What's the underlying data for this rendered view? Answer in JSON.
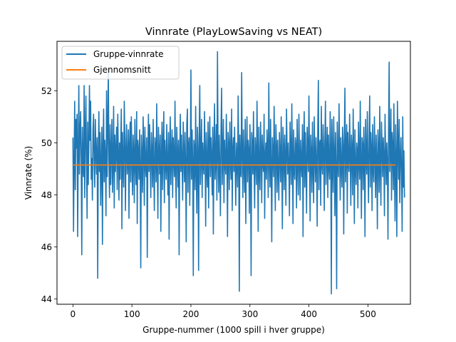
{
  "chart_data": {
    "type": "line",
    "title": "Vinnrate (PlayLowSaving vs NEAT)",
    "xlabel": "Gruppe-nummer (1000 spill i hver gruppe)",
    "ylabel": "Vinnrate (%)",
    "xlim": [
      -27,
      572
    ],
    "ylim": [
      43.8,
      53.9
    ],
    "xticks": [
      0,
      100,
      200,
      300,
      400,
      500
    ],
    "yticks": [
      44,
      46,
      48,
      50,
      52
    ],
    "grid": false,
    "legend_position": "upper-left",
    "series": [
      {
        "name": "Gruppe-vinnrate",
        "color": "#1f77b4",
        "x_start": 0,
        "x_step": 1,
        "values": [
          50.2,
          46.6,
          49.2,
          51.6,
          48.2,
          50.9,
          49.8,
          51.1,
          46.4,
          49.6,
          52.2,
          48.8,
          50.4,
          51.2,
          49.4,
          45.7,
          50.6,
          49.1,
          48.7,
          52.2,
          47.9,
          50.3,
          51.8,
          49.3,
          47.1,
          50.8,
          48.4,
          49.9,
          52.2,
          50.1,
          51.6,
          48.6,
          49.4,
          47.8,
          50.5,
          51.1,
          49.2,
          48.3,
          50.9,
          49.6,
          48.8,
          50.2,
          44.8,
          49.5,
          51.2,
          48.9,
          50.4,
          47.6,
          49.1,
          50.6,
          46.1,
          49.8,
          51.3,
          48.5,
          50.1,
          49.4,
          47.2,
          52.0,
          48.7,
          50.5,
          52.8,
          49.3,
          47.9,
          50.7,
          48.4,
          49.6,
          50.9,
          48.1,
          49.2,
          51.4,
          47.5,
          50.3,
          48.9,
          49.7,
          50.6,
          48.2,
          51.1,
          49.5,
          47.8,
          50.0,
          48.6,
          49.9,
          51.3,
          46.7,
          50.4,
          49.1,
          48.3,
          51.6,
          50.2,
          47.4,
          49.8,
          50.7,
          48.8,
          49.3,
          50.5,
          47.1,
          49.9,
          50.8,
          48.5,
          51.0,
          49.4,
          48.0,
          50.3,
          49.6,
          47.7,
          50.9,
          49.2,
          48.4,
          51.2,
          46.9,
          50.1,
          49.7,
          48.6,
          50.5,
          49.0,
          45.2,
          50.3,
          49.5,
          48.1,
          51.0,
          49.8,
          47.6,
          50.6,
          49.1,
          48.7,
          50.2,
          45.6,
          49.4,
          51.1,
          48.9,
          50.7,
          49.3,
          47.9,
          50.4,
          49.6,
          48.3,
          50.9,
          49.0,
          47.4,
          50.2,
          49.8,
          48.5,
          51.5,
          49.2,
          47.1,
          50.6,
          49.7,
          48.8,
          50.3,
          46.6,
          49.5,
          50.8,
          48.2,
          49.9,
          51.2,
          47.7,
          50.1,
          49.3,
          48.6,
          50.7,
          49.1,
          48.0,
          50.4,
          46.3,
          49.8,
          51.0,
          48.4,
          49.6,
          50.5,
          47.9,
          50.2,
          49.4,
          48.7,
          51.6,
          49.0,
          47.5,
          50.6,
          49.7,
          48.3,
          50.1,
          45.7,
          49.5,
          51.1,
          48.9,
          50.3,
          49.2,
          47.8,
          50.8,
          49.6,
          48.5,
          50.4,
          49.1,
          46.2,
          50.7,
          51.3,
          48.1,
          49.9,
          50.2,
          47.6,
          49.4,
          52.8,
          48.6,
          50.5,
          49.3,
          44.9,
          50.1,
          49.8,
          48.2,
          51.4,
          49.0,
          47.3,
          50.6,
          49.7,
          45.1,
          50.3,
          52.2,
          48.4,
          49.5,
          50.9,
          47.9,
          50.0,
          49.2,
          48.8,
          51.2,
          49.6,
          46.8,
          50.4,
          49.1,
          48.3,
          50.8,
          47.5,
          49.9,
          51.0,
          48.7,
          50.2,
          49.4,
          48.0,
          50.6,
          46.5,
          49.8,
          51.5,
          48.6,
          49.3,
          50.7,
          47.8,
          53.5,
          49.7,
          48.1,
          50.3,
          49.0,
          47.2,
          50.5,
          52.1,
          48.4,
          49.6,
          50.9,
          47.7,
          50.1,
          49.2,
          48.8,
          51.1,
          49.5,
          46.4,
          50.4,
          49.9,
          48.2,
          50.8,
          49.3,
          48.6,
          51.3,
          47.4,
          49.7,
          50.2,
          48.9,
          50.6,
          49.1,
          47.6,
          50.0,
          49.4,
          48.3,
          51.8,
          49.8,
          44.3,
          50.3,
          49.0,
          48.7,
          52.7,
          49.6,
          47.9,
          50.5,
          49.2,
          48.1,
          50.9,
          46.9,
          49.5,
          51.0,
          48.5,
          50.1,
          49.7,
          47.3,
          50.7,
          49.3,
          44.9,
          50.4,
          49.9,
          48.8,
          51.2,
          49.1,
          47.5,
          50.2,
          49.6,
          48.4,
          51.6,
          49.4,
          46.6,
          50.6,
          49.0,
          48.2,
          50.8,
          49.8,
          47.7,
          50.3,
          49.2,
          48.9,
          51.1,
          47.1,
          49.5,
          50.0,
          48.6,
          50.5,
          49.7,
          47.9,
          52.3,
          49.3,
          48.3,
          50.9,
          49.1,
          46.2,
          50.2,
          49.6,
          48.7,
          51.4,
          49.4,
          47.4,
          50.7,
          49.9,
          48.1,
          50.1,
          49.0,
          47.8,
          50.4,
          49.5,
          48.5,
          51.0,
          49.2,
          46.7,
          50.6,
          49.8,
          48.2,
          50.3,
          49.3,
          47.6,
          51.3,
          49.7,
          48.8,
          50.0,
          49.1,
          47.2,
          50.8,
          49.6,
          48.4,
          51.5,
          49.4,
          46.9,
          50.5,
          49.0,
          48.6,
          50.2,
          49.9,
          47.5,
          50.9,
          49.3,
          48.0,
          51.1,
          49.5,
          47.8,
          50.1,
          49.2,
          48.7,
          50.7,
          46.4,
          49.8,
          51.2,
          48.3,
          50.4,
          49.1,
          47.3,
          50.6,
          49.7,
          48.9,
          51.8,
          49.4,
          47.0,
          50.3,
          49.6,
          48.1,
          50.8,
          49.0,
          47.7,
          51.0,
          49.5,
          48.5,
          50.2,
          49.3,
          46.8,
          50.5,
          52.4,
          48.2,
          49.9,
          50.1,
          47.6,
          51.4,
          49.2,
          48.8,
          50.7,
          49.7,
          47.4,
          50.0,
          51.6,
          48.4,
          49.5,
          50.6,
          47.9,
          50.3,
          49.1,
          48.6,
          51.2,
          49.8,
          44.2,
          50.9,
          49.4,
          48.1,
          51.0,
          49.6,
          47.2,
          50.4,
          49.0,
          44.4,
          50.8,
          49.3,
          48.7,
          51.5,
          49.7,
          47.8,
          50.2,
          49.1,
          48.3,
          50.6,
          49.9,
          46.5,
          50.1,
          52.1,
          48.5,
          49.6,
          50.7,
          47.3,
          50.4,
          49.2,
          48.9,
          51.1,
          49.5,
          47.6,
          50.3,
          49.8,
          48.0,
          51.3,
          49.4,
          46.9,
          50.5,
          49.0,
          48.4,
          50.0,
          49.7,
          47.5,
          50.8,
          49.3,
          48.6,
          51.6,
          49.1,
          47.1,
          50.2,
          49.9,
          48.2,
          50.6,
          49.6,
          46.4,
          50.9,
          49.4,
          48.8,
          51.2,
          49.2,
          47.7,
          50.1,
          51.8,
          48.3,
          50.4,
          49.8,
          47.4,
          50.7,
          49.0,
          48.5,
          51.0,
          49.5,
          47.9,
          50.3,
          49.3,
          46.7,
          50.5,
          49.7,
          48.1,
          51.4,
          49.1,
          47.6,
          50.8,
          49.9,
          48.7,
          50.2,
          49.4,
          47.2,
          51.1,
          49.6,
          48.4,
          50.0,
          49.2,
          46.3,
          50.6,
          53.1,
          48.9,
          49.5,
          51.3,
          47.8,
          50.4,
          49.8,
          48.2,
          51.5,
          49.0,
          47.0,
          50.7,
          49.3,
          46.4,
          51.6,
          49.9,
          48.6,
          50.9,
          47.7,
          49.4,
          50.2,
          48.8,
          46.6,
          51.0,
          48.3,
          49.7,
          47.9
        ]
      },
      {
        "name": "Gjennomsnitt",
        "color": "#ff7f0e",
        "x": [
          0,
          547
        ],
        "values": [
          49.15,
          49.15
        ]
      }
    ]
  }
}
